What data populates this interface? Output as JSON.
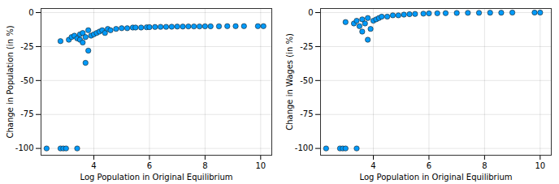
{
  "chart_data": [
    {
      "type": "scatter",
      "x_label": "Log Population in Original Equilibrium",
      "y_label": "Change in Population (in %)",
      "x": [
        2.3,
        2.8,
        2.9,
        3.0,
        3.4,
        2.8,
        3.1,
        3.2,
        3.3,
        3.4,
        3.5,
        3.5,
        3.6,
        3.6,
        3.7,
        3.7,
        3.8,
        3.8,
        3.9,
        4.0,
        4.1,
        4.2,
        4.3,
        4.4,
        4.5,
        4.6,
        4.8,
        5.0,
        5.2,
        5.4,
        5.5,
        5.7,
        5.9,
        6.0,
        6.2,
        6.4,
        6.6,
        6.8,
        7.0,
        7.2,
        7.4,
        7.6,
        7.8,
        8.0,
        8.2,
        8.5,
        8.8,
        9.1,
        9.4,
        9.9,
        10.1
      ],
      "values": [
        -100,
        -100,
        -100,
        -100,
        -100,
        -21,
        -20,
        -18,
        -17,
        -19,
        -16,
        -20,
        -22,
        -15,
        -37,
        -18,
        -13,
        -28,
        -17,
        -16,
        -15,
        -14,
        -13,
        -15,
        -12,
        -13,
        -12,
        -11.5,
        -11.5,
        -11,
        -11,
        -11,
        -10.8,
        -10.7,
        -10.6,
        -10.5,
        -10.5,
        -10.4,
        -10.3,
        -10.3,
        -10.2,
        -10.2,
        -10.2,
        -10.1,
        -10.1,
        -10.1,
        -10,
        -10,
        -10,
        -10,
        -10
      ],
      "color": "#009AFA",
      "marker": "circle",
      "grid": true,
      "xlim": [
        2.1,
        10.4
      ],
      "xticks": [
        4,
        6,
        8,
        10
      ],
      "ylim": [
        -105,
        3
      ],
      "yticks": [
        0,
        -25,
        -50,
        -75,
        -100
      ]
    },
    {
      "type": "scatter",
      "x_label": "Log Population in Original Equilibrium",
      "y_label": "Change in Wages (in %)",
      "x": [
        2.3,
        2.8,
        2.9,
        3.0,
        3.4,
        3.0,
        3.3,
        3.4,
        3.5,
        3.6,
        3.6,
        3.7,
        3.8,
        3.8,
        3.9,
        4.0,
        4.1,
        4.2,
        4.3,
        4.5,
        4.7,
        4.9,
        5.1,
        5.3,
        5.5,
        5.8,
        6.0,
        6.3,
        6.6,
        7.0,
        7.4,
        7.8,
        8.2,
        8.6,
        9.0,
        9.8,
        10.0
      ],
      "values": [
        -100,
        -100,
        -100,
        -100,
        -100,
        -7,
        -8,
        -6,
        -10,
        -14,
        -5,
        -8,
        -20,
        -4,
        -12,
        -6,
        -5,
        -4,
        -3,
        -3,
        -2,
        -2,
        -1.5,
        -1.2,
        -1,
        -0.8,
        -0.6,
        -0.5,
        -0.4,
        -0.3,
        -0.2,
        -0.2,
        -0.1,
        -0.1,
        0,
        0,
        0
      ],
      "color": "#009AFA",
      "marker": "circle",
      "grid": true,
      "xlim": [
        2.1,
        10.4
      ],
      "xticks": [
        4,
        6,
        8,
        10
      ],
      "ylim": [
        -105,
        3
      ],
      "yticks": [
        0,
        -25,
        -50,
        -75,
        -100
      ]
    }
  ]
}
